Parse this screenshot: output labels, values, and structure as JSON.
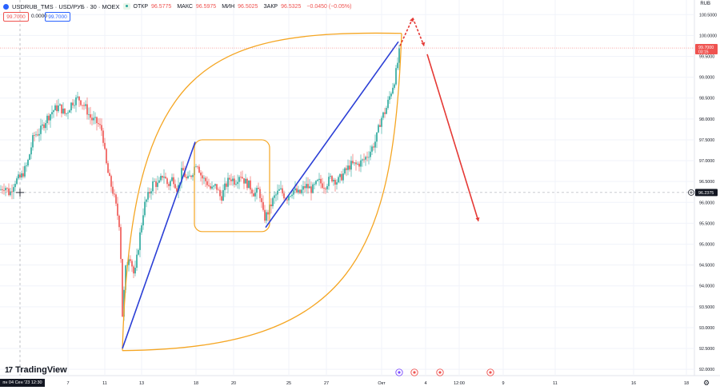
{
  "header": {
    "symbol": "USDRUB_TMS · USD/РУБ · 30 · MOEX",
    "open_label": "ОТКР",
    "open_value": "96.5775",
    "high_label": "МАКС",
    "high_value": "96.5975",
    "low_label": "МИН",
    "low_value": "96.5025",
    "close_label": "ЗАКР",
    "close_value": "96.5325",
    "change": "−0.0450 (−0.05%)"
  },
  "quote": {
    "bid": "99.7000",
    "spread": "0.0000",
    "ask": "99.7000"
  },
  "currency": "RUB",
  "branding": {
    "name": "TradingView",
    "mark": "17"
  },
  "crosshair_date": "пн 04 Сен '23   12:30",
  "colors": {
    "up": "#26a69a",
    "down": "#ef5350",
    "orange": "#f5a623",
    "blue": "#2b3fd6",
    "red": "#e53935"
  },
  "chart_data": {
    "type": "candlestick",
    "title": "USDRUB_TMS · USD/РУБ · 30 · MOEX",
    "ylim": [
      91.85,
      100.85
    ],
    "y_ticks": [
      92.0,
      92.5,
      93.0,
      93.5,
      94.0,
      94.5,
      95.0,
      95.5,
      96.0,
      96.5,
      97.0,
      97.5,
      98.0,
      98.5,
      99.0,
      99.5,
      100.0,
      100.5
    ],
    "y_tick_labels": [
      "92.0000",
      "92.5000",
      "93.0000",
      "93.5000",
      "94.0000",
      "94.5000",
      "95.0000",
      "95.5000",
      "96.0000",
      "96.5000",
      "97.0000",
      "97.5000",
      "98.0000",
      "98.5000",
      "99.0000",
      "99.5000",
      "100.0000",
      "100.5000"
    ],
    "x_ticks": [
      "7",
      "11",
      "13",
      "18",
      "20",
      "25",
      "27",
      "Окт",
      "4",
      "12:00",
      "9",
      "11",
      "16",
      "18"
    ],
    "last_price": {
      "value": 99.7,
      "label": "99.7000",
      "countdown": "03:15"
    },
    "crosshair_price": {
      "value": 96.2375,
      "label": "96.2375"
    },
    "series": [
      {
        "name": "price",
        "anchors": [
          [
            0,
            96.3
          ],
          [
            6,
            96.4
          ],
          [
            12,
            96.2
          ],
          [
            18,
            96.5
          ],
          [
            26,
            96.6
          ],
          [
            34,
            96.9
          ],
          [
            42,
            97.6
          ],
          [
            50,
            97.7
          ],
          [
            58,
            98.0
          ],
          [
            66,
            98.2
          ],
          [
            74,
            98.3
          ],
          [
            82,
            98.1
          ],
          [
            90,
            98.4
          ],
          [
            98,
            98.5
          ],
          [
            106,
            98.3
          ],
          [
            114,
            98.0
          ],
          [
            122,
            97.9
          ],
          [
            128,
            97.7
          ],
          [
            132,
            97.0
          ],
          [
            136,
            96.6
          ],
          [
            142,
            96.2
          ],
          [
            150,
            95.4
          ],
          [
            153,
            93.3
          ],
          [
            157,
            94.4
          ],
          [
            162,
            94.8
          ],
          [
            168,
            94.2
          ],
          [
            174,
            95.1
          ],
          [
            180,
            95.9
          ],
          [
            186,
            96.2
          ],
          [
            192,
            96.5
          ],
          [
            198,
            96.4
          ],
          [
            204,
            96.7
          ],
          [
            210,
            96.4
          ],
          [
            216,
            96.6
          ],
          [
            222,
            96.3
          ],
          [
            228,
            96.8
          ],
          [
            234,
            96.5
          ],
          [
            240,
            96.7
          ],
          [
            246,
            97.0
          ],
          [
            252,
            96.6
          ],
          [
            258,
            96.5
          ],
          [
            264,
            96.3
          ],
          [
            270,
            96.4
          ],
          [
            276,
            96.1
          ],
          [
            282,
            96.4
          ],
          [
            288,
            96.6
          ],
          [
            294,
            96.5
          ],
          [
            300,
            96.7
          ],
          [
            306,
            96.5
          ],
          [
            312,
            96.4
          ],
          [
            318,
            96.2
          ],
          [
            324,
            96.3
          ],
          [
            330,
            95.6
          ],
          [
            336,
            95.8
          ],
          [
            342,
            96.1
          ],
          [
            350,
            96.3
          ],
          [
            358,
            96.1
          ],
          [
            366,
            96.3
          ],
          [
            374,
            96.2
          ],
          [
            382,
            96.4
          ],
          [
            390,
            96.3
          ],
          [
            398,
            96.5
          ],
          [
            406,
            96.4
          ],
          [
            414,
            96.6
          ],
          [
            422,
            96.5
          ],
          [
            430,
            96.7
          ],
          [
            438,
            96.9
          ],
          [
            446,
            96.9
          ],
          [
            454,
            97.0
          ],
          [
            462,
            97.2
          ],
          [
            470,
            97.5
          ],
          [
            476,
            98.0
          ],
          [
            482,
            98.2
          ],
          [
            488,
            98.6
          ],
          [
            494,
            99.0
          ],
          [
            500,
            99.7
          ]
        ]
      }
    ],
    "drawings": [
      {
        "kind": "polyline",
        "color": "orange",
        "points": [
          [
            153,
            92.45
          ],
          [
            502,
            100.05
          ]
        ],
        "curve": "upper"
      },
      {
        "kind": "polyline",
        "color": "orange",
        "points": [
          [
            153,
            92.45
          ],
          [
            502,
            100.05
          ]
        ],
        "curve": "lower"
      },
      {
        "kind": "rect",
        "color": "orange",
        "x0": 243,
        "x1": 337,
        "y0": 95.3,
        "y1": 97.5
      },
      {
        "kind": "line",
        "color": "blue",
        "points": [
          [
            153,
            92.5
          ],
          [
            244,
            97.45
          ]
        ]
      },
      {
        "kind": "line",
        "color": "blue",
        "points": [
          [
            332,
            95.4
          ],
          [
            498,
            99.85
          ]
        ]
      },
      {
        "kind": "line",
        "color": "red",
        "points": [
          [
            500,
            99.75
          ],
          [
            516,
            100.42
          ]
        ],
        "dashed": true
      },
      {
        "kind": "line",
        "color": "red",
        "points": [
          [
            516,
            100.42
          ],
          [
            530,
            99.75
          ]
        ],
        "dashed": true
      },
      {
        "kind": "line",
        "color": "red",
        "points": [
          [
            534,
            99.55
          ],
          [
            598,
            95.55
          ]
        ]
      }
    ]
  }
}
